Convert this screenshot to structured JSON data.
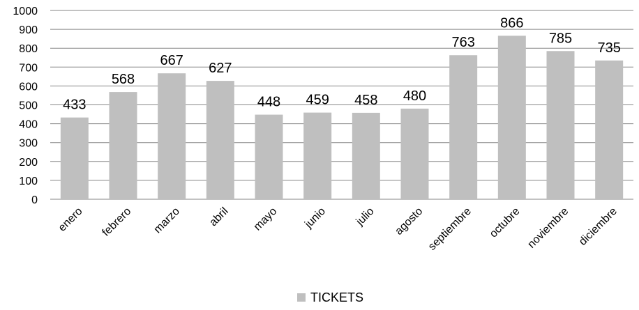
{
  "chart_data": {
    "type": "bar",
    "categories": [
      "enero",
      "febrero",
      "marzo",
      "abril",
      "mayo",
      "junio",
      "julio",
      "agosto",
      "septiembre",
      "octubre",
      "noviembre",
      "diciembre"
    ],
    "series": [
      {
        "name": "TICKETS",
        "values": [
          433,
          568,
          667,
          627,
          448,
          459,
          458,
          480,
          763,
          866,
          785,
          735
        ],
        "color": "#bfbfbf"
      }
    ],
    "yticks": [
      "0",
      "100",
      "200",
      "300",
      "400",
      "500",
      "600",
      "700",
      "800",
      "900",
      "1000"
    ],
    "ylim": [
      0,
      1000
    ],
    "grid": true,
    "data_labels": true,
    "legend_position": "bottom"
  }
}
